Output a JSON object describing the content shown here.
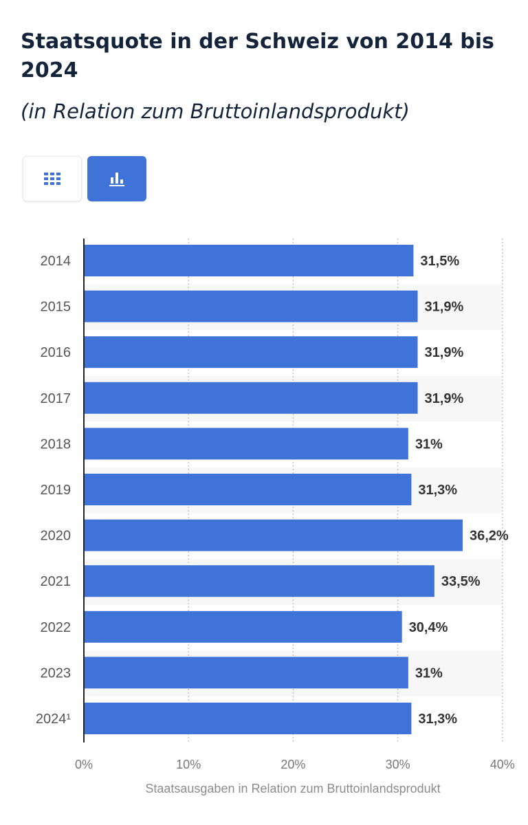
{
  "header": {
    "title": "Staatsquote in der Schweiz von 2014 bis 2024",
    "subtitle": "(in Relation zum Bruttoinlandsprodukt)"
  },
  "toolbar": {
    "table_view_icon": "table-grid-icon",
    "chart_view_icon": "bar-chart-icon",
    "active_view": "chart"
  },
  "colors": {
    "bar": "#3f73d8",
    "accent": "#3f73d8",
    "title": "#13243a",
    "label": "#555555",
    "stripe": "#f7f7f7"
  },
  "chart_data": {
    "type": "bar",
    "orientation": "horizontal",
    "categories": [
      "2014",
      "2015",
      "2016",
      "2017",
      "2018",
      "2019",
      "2020",
      "2021",
      "2022",
      "2023",
      "2024¹"
    ],
    "values": [
      31.5,
      31.9,
      31.9,
      31.9,
      31.0,
      31.3,
      36.2,
      33.5,
      30.4,
      31.0,
      31.3
    ],
    "value_labels": [
      "31,5%",
      "31,9%",
      "31,9%",
      "31,9%",
      "31%",
      "31,3%",
      "36,2%",
      "33,5%",
      "30,4%",
      "31%",
      "31,3%"
    ],
    "xlim": [
      0,
      40
    ],
    "x_ticks": [
      0,
      10,
      20,
      30,
      40
    ],
    "x_tick_labels": [
      "0%",
      "10%",
      "20%",
      "30%",
      "40%"
    ],
    "xlabel": "Staatsausgaben in Relation zum Bruttoinlandsprodukt",
    "ylabel": "",
    "grid": true,
    "legend": false
  }
}
